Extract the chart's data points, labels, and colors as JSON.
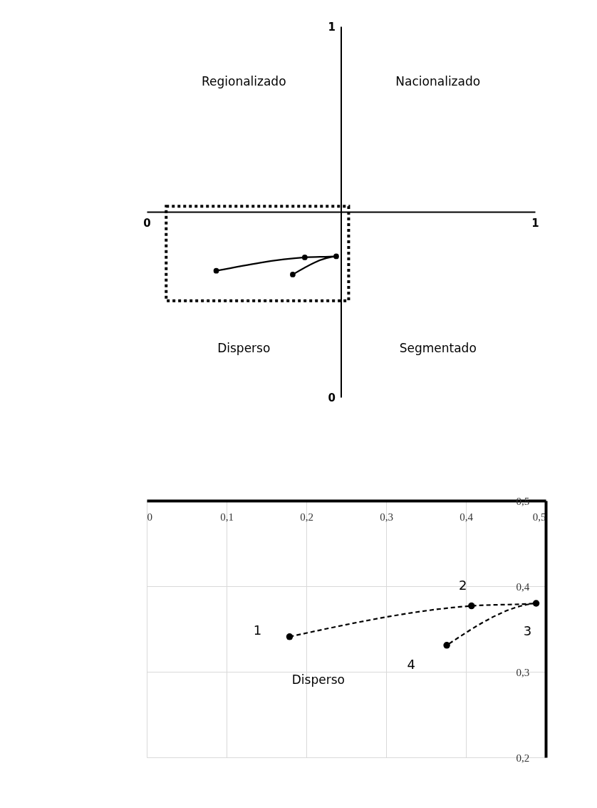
{
  "chart_data": [
    {
      "type": "line",
      "x": [
        0.179,
        0.407,
        0.488,
        0.376
      ],
      "series": [
        {
          "color": "#000000",
          "values": [
            0.341,
            0.377,
            0.38,
            0.331
          ]
        }
      ],
      "xlim": [
        0,
        1
      ],
      "ylim": [
        0,
        1
      ],
      "xticks": [
        0,
        1
      ],
      "yticks": [
        0,
        1
      ],
      "grid": false,
      "marker": "circle",
      "line_style": "solid",
      "annotations": [
        "Regionalizado",
        "Nacionalizado",
        "Disperso",
        "Segmentado"
      ]
    },
    {
      "type": "line",
      "x": [
        0.179,
        0.407,
        0.488,
        0.376
      ],
      "series": [
        {
          "color": "#000000",
          "values": [
            0.341,
            0.377,
            0.38,
            0.331
          ]
        }
      ],
      "xlim": [
        0,
        0.5
      ],
      "ylim": [
        0.2,
        0.5
      ],
      "xticks": [
        {
          "value": 0,
          "label": "0"
        },
        {
          "value": 0.1,
          "label": "0,1"
        },
        {
          "value": 0.2,
          "label": "0,2"
        },
        {
          "value": 0.3,
          "label": "0,3"
        },
        {
          "value": 0.4,
          "label": "0,4"
        },
        {
          "value": 0.5,
          "label": "0,5"
        }
      ],
      "yticks": [
        {
          "value": 0.2,
          "label": "0,2"
        },
        {
          "value": 0.3,
          "label": "0,3"
        },
        {
          "value": 0.4,
          "label": "0,4"
        },
        {
          "value": 0.5,
          "label": "0,5"
        }
      ],
      "grid": true,
      "marker": "circle",
      "line_style": "dashed",
      "annotations": [
        {
          "text": "1",
          "x": 0.179,
          "y": 0.341
        },
        {
          "text": "2",
          "x": 0.407,
          "y": 0.377
        },
        {
          "text": "3",
          "x": 0.488,
          "y": 0.38
        },
        {
          "text": "4",
          "x": 0.376,
          "y": 0.331
        },
        "Disperso"
      ]
    }
  ]
}
